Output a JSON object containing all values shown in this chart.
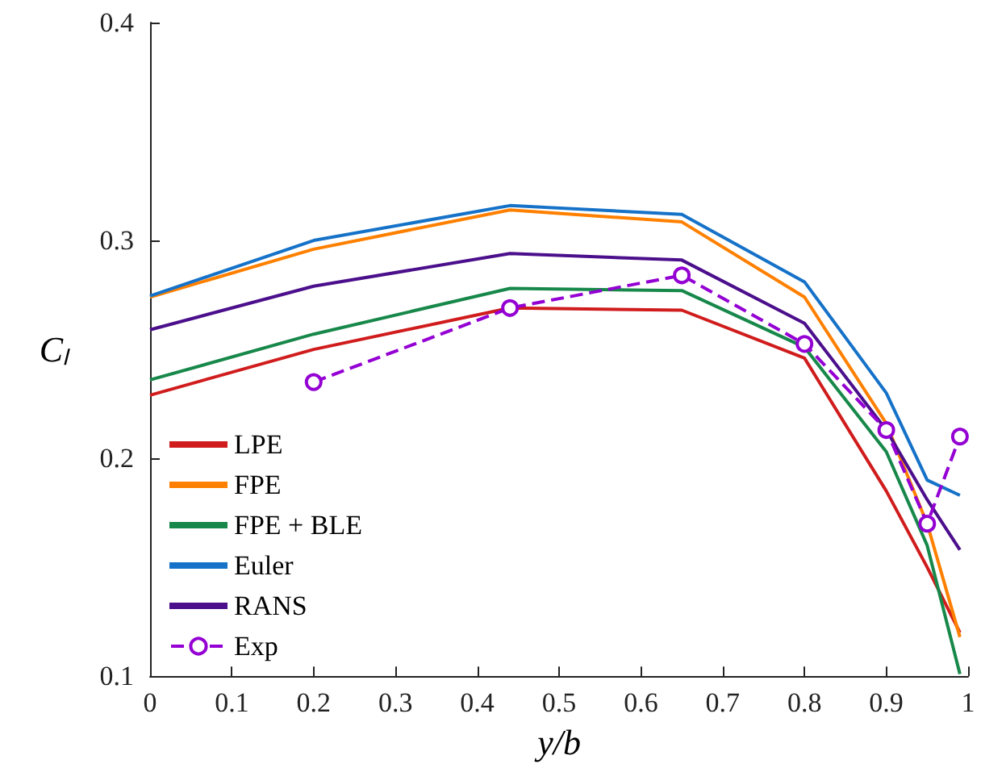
{
  "chart_data": {
    "type": "line",
    "xlabel": "y/b",
    "ylabel": "Cₗ",
    "x": [
      0,
      0.2,
      0.44,
      0.65,
      0.8,
      0.9,
      0.95,
      0.99
    ],
    "series": [
      {
        "name": "LPE",
        "color": "#d01c1c",
        "values": [
          0.229,
          0.25,
          0.269,
          0.268,
          0.246,
          0.185,
          0.15,
          0.12
        ]
      },
      {
        "name": "FPE",
        "color": "#ff8000",
        "values": [
          0.274,
          0.296,
          0.314,
          0.3085,
          0.274,
          0.216,
          0.17,
          0.118
        ]
      },
      {
        "name": "FPE + BLE",
        "color": "#17884a",
        "values": [
          0.236,
          0.257,
          0.278,
          0.277,
          0.251,
          0.203,
          0.16,
          0.101
        ]
      },
      {
        "name": "Euler",
        "color": "#1572c8",
        "values": [
          0.2745,
          0.3,
          0.316,
          0.312,
          0.281,
          0.23,
          0.19,
          0.183
        ]
      },
      {
        "name": "RANS",
        "color": "#4b0f8c",
        "values": [
          0.259,
          0.279,
          0.294,
          0.291,
          0.262,
          0.213,
          0.181,
          0.158
        ]
      },
      {
        "name": "Exp",
        "color": "#9400d3",
        "x": [
          0.2,
          0.44,
          0.65,
          0.8,
          0.9,
          0.95,
          0.99
        ],
        "values": [
          0.235,
          0.269,
          0.284,
          0.2525,
          0.213,
          0.17,
          0.21
        ],
        "marker": "circle",
        "line_style": "dashed"
      }
    ],
    "xlim": [
      0,
      1
    ],
    "xticks": [
      0,
      0.1,
      0.2,
      0.3,
      0.4,
      0.5,
      0.6,
      0.7,
      0.8,
      0.9,
      1
    ],
    "ylim": [
      0.1,
      0.4
    ],
    "yticks": [
      0.1,
      0.2,
      0.3,
      0.4
    ],
    "grid": false,
    "legend": "bottom left",
    "marker": "none",
    "line_style": "solid"
  }
}
